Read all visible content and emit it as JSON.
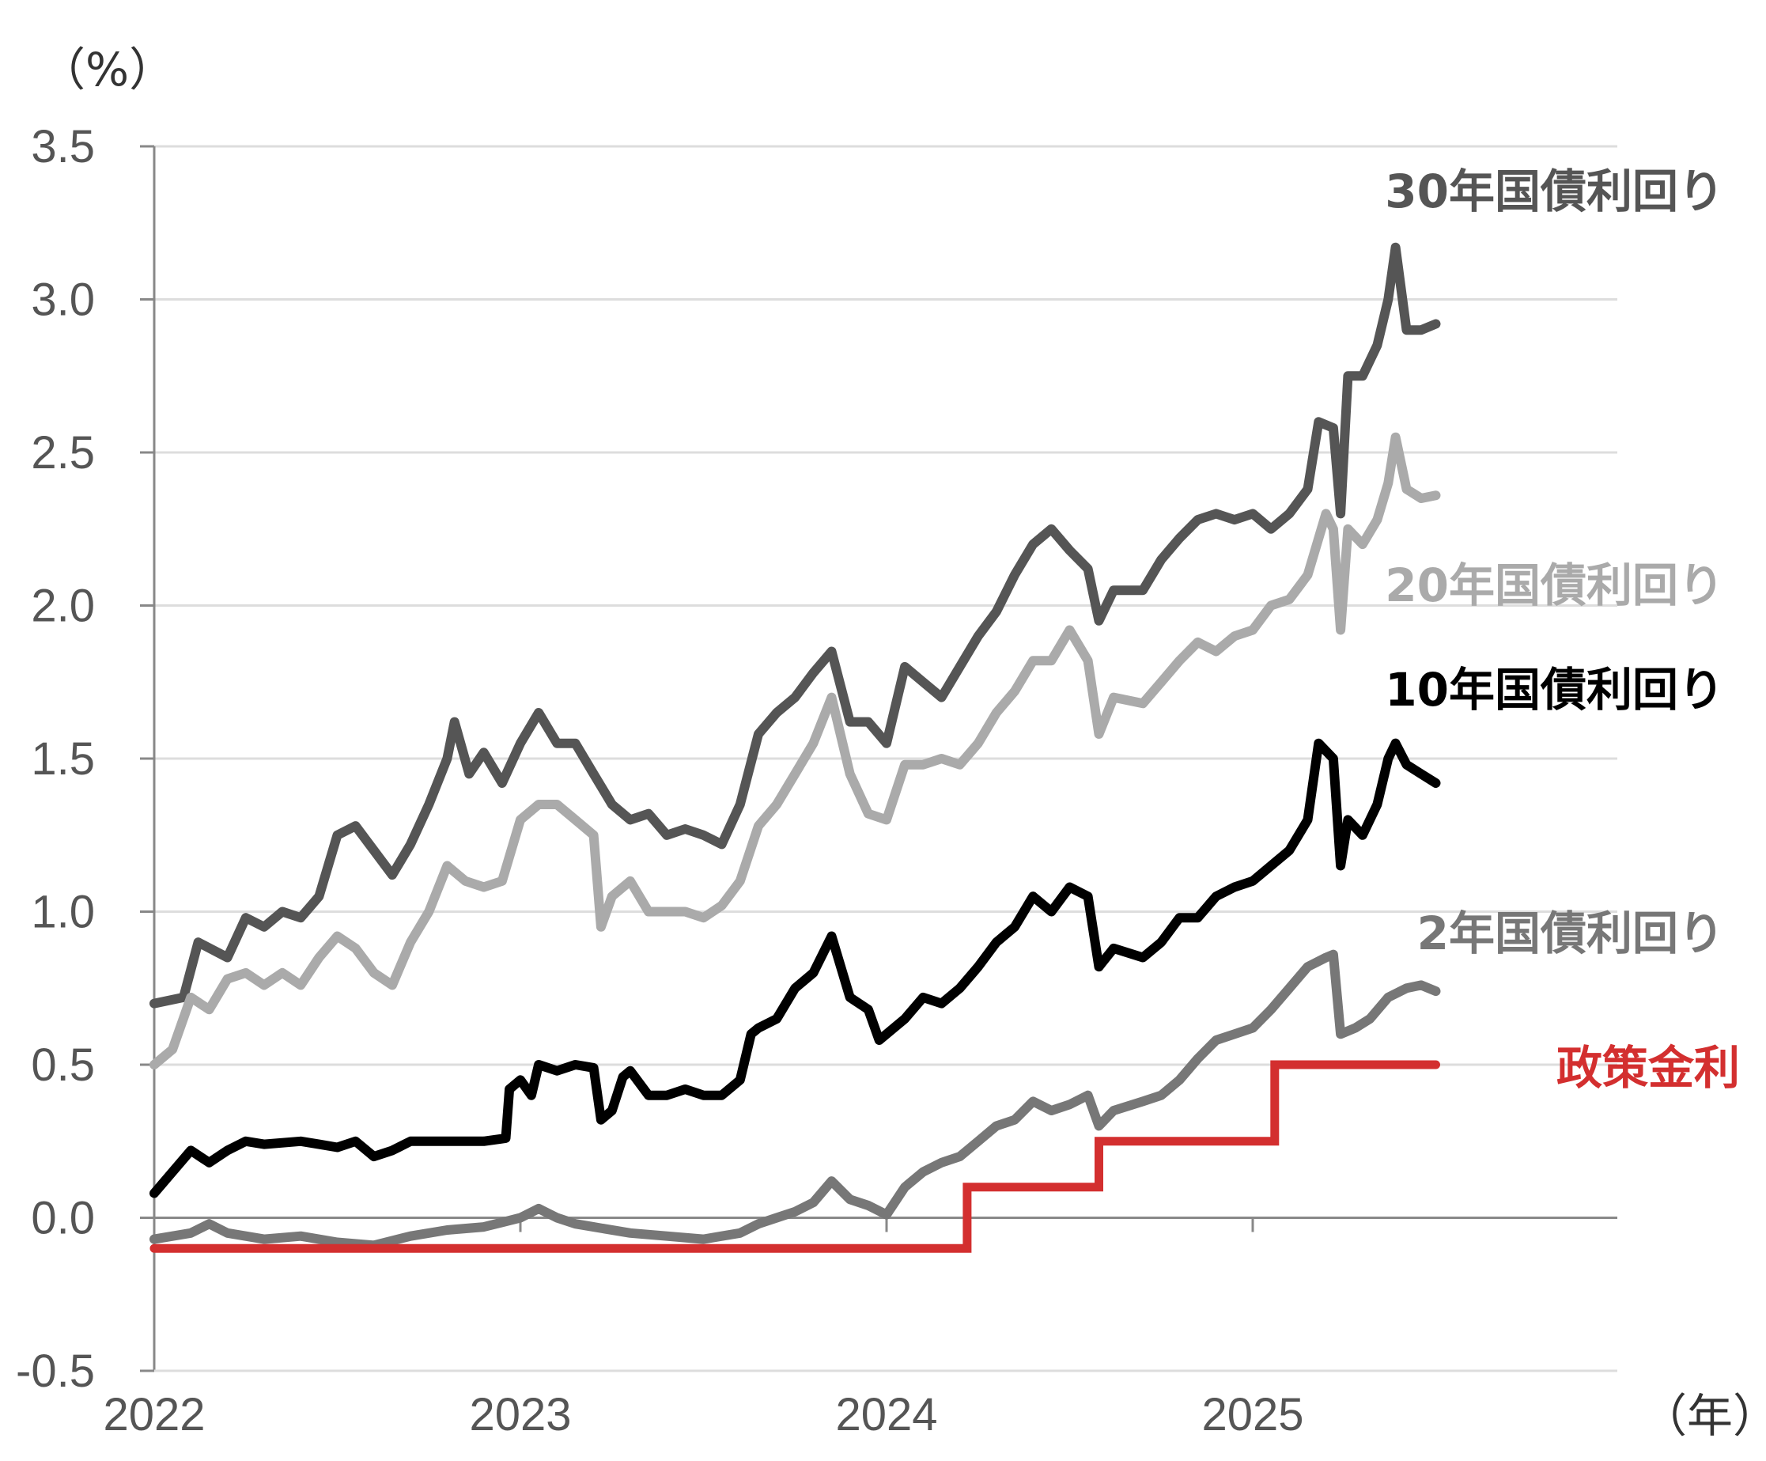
{
  "chart_data": {
    "type": "line",
    "y_unit_label": "（%）",
    "x_unit_label": "（年）",
    "ylim": [
      -0.5,
      3.5
    ],
    "y_ticks": [
      3.5,
      3.0,
      2.5,
      2.0,
      1.5,
      1.0,
      0.5,
      0.0,
      -0.5
    ],
    "y_tick_labels": [
      "3.5",
      "3.0",
      "2.5",
      "2.0",
      "1.5",
      "1.0",
      "0.5",
      "0.0",
      "-0.5"
    ],
    "x_ticks": [
      "2022",
      "2023",
      "2024",
      "2025"
    ],
    "xlim": [
      2022.0,
      2026.0
    ],
    "grid": true,
    "colors": {
      "grid": "#dddddd",
      "axis": "#888888",
      "tick_text": "#555555",
      "negative_tick_text": "#e00000"
    },
    "series": [
      {
        "name": "30年国債利回り",
        "color": "#555555",
        "points": [
          [
            2022.0,
            0.7
          ],
          [
            2022.08,
            0.72
          ],
          [
            2022.12,
            0.9
          ],
          [
            2022.2,
            0.85
          ],
          [
            2022.25,
            0.98
          ],
          [
            2022.3,
            0.95
          ],
          [
            2022.35,
            1.0
          ],
          [
            2022.4,
            0.98
          ],
          [
            2022.45,
            1.05
          ],
          [
            2022.5,
            1.25
          ],
          [
            2022.55,
            1.28
          ],
          [
            2022.6,
            1.2
          ],
          [
            2022.65,
            1.12
          ],
          [
            2022.7,
            1.22
          ],
          [
            2022.75,
            1.35
          ],
          [
            2022.8,
            1.5
          ],
          [
            2022.82,
            1.62
          ],
          [
            2022.86,
            1.45
          ],
          [
            2022.9,
            1.52
          ],
          [
            2022.95,
            1.42
          ],
          [
            2023.0,
            1.55
          ],
          [
            2023.05,
            1.65
          ],
          [
            2023.1,
            1.55
          ],
          [
            2023.15,
            1.55
          ],
          [
            2023.2,
            1.45
          ],
          [
            2023.25,
            1.35
          ],
          [
            2023.3,
            1.3
          ],
          [
            2023.35,
            1.32
          ],
          [
            2023.4,
            1.25
          ],
          [
            2023.45,
            1.27
          ],
          [
            2023.5,
            1.25
          ],
          [
            2023.55,
            1.22
          ],
          [
            2023.6,
            1.35
          ],
          [
            2023.65,
            1.58
          ],
          [
            2023.7,
            1.65
          ],
          [
            2023.75,
            1.7
          ],
          [
            2023.8,
            1.78
          ],
          [
            2023.85,
            1.85
          ],
          [
            2023.9,
            1.62
          ],
          [
            2023.95,
            1.62
          ],
          [
            2024.0,
            1.55
          ],
          [
            2024.05,
            1.8
          ],
          [
            2024.1,
            1.75
          ],
          [
            2024.15,
            1.7
          ],
          [
            2024.2,
            1.8
          ],
          [
            2024.25,
            1.9
          ],
          [
            2024.3,
            1.98
          ],
          [
            2024.35,
            2.1
          ],
          [
            2024.4,
            2.2
          ],
          [
            2024.45,
            2.25
          ],
          [
            2024.5,
            2.18
          ],
          [
            2024.55,
            2.12
          ],
          [
            2024.58,
            1.95
          ],
          [
            2024.62,
            2.05
          ],
          [
            2024.7,
            2.05
          ],
          [
            2024.75,
            2.15
          ],
          [
            2024.8,
            2.22
          ],
          [
            2024.85,
            2.28
          ],
          [
            2024.9,
            2.3
          ],
          [
            2024.95,
            2.28
          ],
          [
            2025.0,
            2.3
          ],
          [
            2025.05,
            2.25
          ],
          [
            2025.1,
            2.3
          ],
          [
            2025.15,
            2.38
          ],
          [
            2025.18,
            2.6
          ],
          [
            2025.22,
            2.58
          ],
          [
            2025.24,
            2.3
          ],
          [
            2025.26,
            2.75
          ],
          [
            2025.3,
            2.75
          ],
          [
            2025.34,
            2.85
          ],
          [
            2025.37,
            3.0
          ],
          [
            2025.39,
            3.17
          ],
          [
            2025.42,
            2.9
          ],
          [
            2025.46,
            2.9
          ],
          [
            2025.5,
            2.92
          ]
        ]
      },
      {
        "name": "20年国債利回り",
        "color": "#aaaaaa",
        "points": [
          [
            2022.0,
            0.5
          ],
          [
            2022.05,
            0.55
          ],
          [
            2022.1,
            0.72
          ],
          [
            2022.15,
            0.68
          ],
          [
            2022.2,
            0.78
          ],
          [
            2022.25,
            0.8
          ],
          [
            2022.3,
            0.76
          ],
          [
            2022.35,
            0.8
          ],
          [
            2022.4,
            0.76
          ],
          [
            2022.45,
            0.85
          ],
          [
            2022.5,
            0.92
          ],
          [
            2022.55,
            0.88
          ],
          [
            2022.6,
            0.8
          ],
          [
            2022.65,
            0.76
          ],
          [
            2022.7,
            0.9
          ],
          [
            2022.75,
            1.0
          ],
          [
            2022.8,
            1.15
          ],
          [
            2022.85,
            1.1
          ],
          [
            2022.9,
            1.08
          ],
          [
            2022.95,
            1.1
          ],
          [
            2023.0,
            1.3
          ],
          [
            2023.05,
            1.35
          ],
          [
            2023.1,
            1.35
          ],
          [
            2023.15,
            1.3
          ],
          [
            2023.2,
            1.25
          ],
          [
            2023.22,
            0.95
          ],
          [
            2023.25,
            1.05
          ],
          [
            2023.3,
            1.1
          ],
          [
            2023.35,
            1.0
          ],
          [
            2023.4,
            1.0
          ],
          [
            2023.45,
            1.0
          ],
          [
            2023.5,
            0.98
          ],
          [
            2023.55,
            1.02
          ],
          [
            2023.6,
            1.1
          ],
          [
            2023.65,
            1.28
          ],
          [
            2023.7,
            1.35
          ],
          [
            2023.75,
            1.45
          ],
          [
            2023.8,
            1.55
          ],
          [
            2023.85,
            1.7
          ],
          [
            2023.9,
            1.45
          ],
          [
            2023.95,
            1.32
          ],
          [
            2024.0,
            1.3
          ],
          [
            2024.05,
            1.48
          ],
          [
            2024.1,
            1.48
          ],
          [
            2024.15,
            1.5
          ],
          [
            2024.2,
            1.48
          ],
          [
            2024.25,
            1.55
          ],
          [
            2024.3,
            1.65
          ],
          [
            2024.35,
            1.72
          ],
          [
            2024.4,
            1.82
          ],
          [
            2024.45,
            1.82
          ],
          [
            2024.5,
            1.92
          ],
          [
            2024.55,
            1.82
          ],
          [
            2024.58,
            1.58
          ],
          [
            2024.62,
            1.7
          ],
          [
            2024.7,
            1.68
          ],
          [
            2024.75,
            1.75
          ],
          [
            2024.8,
            1.82
          ],
          [
            2024.85,
            1.88
          ],
          [
            2024.9,
            1.85
          ],
          [
            2024.95,
            1.9
          ],
          [
            2025.0,
            1.92
          ],
          [
            2025.05,
            2.0
          ],
          [
            2025.1,
            2.02
          ],
          [
            2025.15,
            2.1
          ],
          [
            2025.2,
            2.3
          ],
          [
            2025.22,
            2.25
          ],
          [
            2025.24,
            1.92
          ],
          [
            2025.26,
            2.25
          ],
          [
            2025.3,
            2.2
          ],
          [
            2025.34,
            2.28
          ],
          [
            2025.37,
            2.4
          ],
          [
            2025.39,
            2.55
          ],
          [
            2025.42,
            2.38
          ],
          [
            2025.46,
            2.35
          ],
          [
            2025.5,
            2.36
          ]
        ]
      },
      {
        "name": "10年国債利回り",
        "color": "#000000",
        "points": [
          [
            2022.0,
            0.08
          ],
          [
            2022.05,
            0.15
          ],
          [
            2022.1,
            0.22
          ],
          [
            2022.15,
            0.18
          ],
          [
            2022.2,
            0.22
          ],
          [
            2022.25,
            0.25
          ],
          [
            2022.3,
            0.24
          ],
          [
            2022.4,
            0.25
          ],
          [
            2022.45,
            0.24
          ],
          [
            2022.5,
            0.23
          ],
          [
            2022.55,
            0.25
          ],
          [
            2022.6,
            0.2
          ],
          [
            2022.65,
            0.22
          ],
          [
            2022.7,
            0.25
          ],
          [
            2022.8,
            0.25
          ],
          [
            2022.9,
            0.25
          ],
          [
            2022.96,
            0.26
          ],
          [
            2022.97,
            0.42
          ],
          [
            2023.0,
            0.45
          ],
          [
            2023.03,
            0.4
          ],
          [
            2023.05,
            0.5
          ],
          [
            2023.1,
            0.48
          ],
          [
            2023.15,
            0.5
          ],
          [
            2023.2,
            0.49
          ],
          [
            2023.22,
            0.32
          ],
          [
            2023.25,
            0.35
          ],
          [
            2023.28,
            0.46
          ],
          [
            2023.3,
            0.48
          ],
          [
            2023.35,
            0.4
          ],
          [
            2023.4,
            0.4
          ],
          [
            2023.45,
            0.42
          ],
          [
            2023.5,
            0.4
          ],
          [
            2023.55,
            0.4
          ],
          [
            2023.6,
            0.45
          ],
          [
            2023.63,
            0.6
          ],
          [
            2023.65,
            0.62
          ],
          [
            2023.7,
            0.65
          ],
          [
            2023.75,
            0.75
          ],
          [
            2023.8,
            0.8
          ],
          [
            2023.85,
            0.92
          ],
          [
            2023.9,
            0.72
          ],
          [
            2023.95,
            0.68
          ],
          [
            2023.98,
            0.58
          ],
          [
            2024.0,
            0.6
          ],
          [
            2024.05,
            0.65
          ],
          [
            2024.1,
            0.72
          ],
          [
            2024.15,
            0.7
          ],
          [
            2024.2,
            0.75
          ],
          [
            2024.25,
            0.82
          ],
          [
            2024.3,
            0.9
          ],
          [
            2024.35,
            0.95
          ],
          [
            2024.4,
            1.05
          ],
          [
            2024.45,
            1.0
          ],
          [
            2024.5,
            1.08
          ],
          [
            2024.55,
            1.05
          ],
          [
            2024.58,
            0.82
          ],
          [
            2024.62,
            0.88
          ],
          [
            2024.7,
            0.85
          ],
          [
            2024.75,
            0.9
          ],
          [
            2024.8,
            0.98
          ],
          [
            2024.85,
            0.98
          ],
          [
            2024.9,
            1.05
          ],
          [
            2024.95,
            1.08
          ],
          [
            2025.0,
            1.1
          ],
          [
            2025.05,
            1.15
          ],
          [
            2025.1,
            1.2
          ],
          [
            2025.15,
            1.3
          ],
          [
            2025.18,
            1.55
          ],
          [
            2025.22,
            1.5
          ],
          [
            2025.24,
            1.15
          ],
          [
            2025.26,
            1.3
          ],
          [
            2025.3,
            1.25
          ],
          [
            2025.34,
            1.35
          ],
          [
            2025.37,
            1.5
          ],
          [
            2025.39,
            1.55
          ],
          [
            2025.42,
            1.48
          ],
          [
            2025.46,
            1.45
          ],
          [
            2025.5,
            1.42
          ]
        ]
      },
      {
        "name": "2年国債利回り",
        "color": "#777777",
        "points": [
          [
            2022.0,
            -0.07
          ],
          [
            2022.1,
            -0.05
          ],
          [
            2022.15,
            -0.02
          ],
          [
            2022.2,
            -0.05
          ],
          [
            2022.3,
            -0.07
          ],
          [
            2022.4,
            -0.06
          ],
          [
            2022.5,
            -0.08
          ],
          [
            2022.6,
            -0.09
          ],
          [
            2022.7,
            -0.06
          ],
          [
            2022.8,
            -0.04
          ],
          [
            2022.9,
            -0.03
          ],
          [
            2023.0,
            0.0
          ],
          [
            2023.05,
            0.03
          ],
          [
            2023.1,
            0.0
          ],
          [
            2023.15,
            -0.02
          ],
          [
            2023.2,
            -0.03
          ],
          [
            2023.3,
            -0.05
          ],
          [
            2023.4,
            -0.06
          ],
          [
            2023.5,
            -0.07
          ],
          [
            2023.55,
            -0.06
          ],
          [
            2023.6,
            -0.05
          ],
          [
            2023.65,
            -0.02
          ],
          [
            2023.7,
            0.0
          ],
          [
            2023.75,
            0.02
          ],
          [
            2023.8,
            0.05
          ],
          [
            2023.85,
            0.12
          ],
          [
            2023.9,
            0.06
          ],
          [
            2023.95,
            0.04
          ],
          [
            2024.0,
            0.01
          ],
          [
            2024.05,
            0.1
          ],
          [
            2024.1,
            0.15
          ],
          [
            2024.15,
            0.18
          ],
          [
            2024.2,
            0.2
          ],
          [
            2024.25,
            0.25
          ],
          [
            2024.3,
            0.3
          ],
          [
            2024.35,
            0.32
          ],
          [
            2024.4,
            0.38
          ],
          [
            2024.45,
            0.35
          ],
          [
            2024.5,
            0.37
          ],
          [
            2024.55,
            0.4
          ],
          [
            2024.58,
            0.3
          ],
          [
            2024.62,
            0.35
          ],
          [
            2024.7,
            0.38
          ],
          [
            2024.75,
            0.4
          ],
          [
            2024.8,
            0.45
          ],
          [
            2024.85,
            0.52
          ],
          [
            2024.9,
            0.58
          ],
          [
            2024.95,
            0.6
          ],
          [
            2025.0,
            0.62
          ],
          [
            2025.05,
            0.68
          ],
          [
            2025.1,
            0.75
          ],
          [
            2025.15,
            0.82
          ],
          [
            2025.2,
            0.85
          ],
          [
            2025.22,
            0.86
          ],
          [
            2025.24,
            0.6
          ],
          [
            2025.28,
            0.62
          ],
          [
            2025.32,
            0.65
          ],
          [
            2025.37,
            0.72
          ],
          [
            2025.42,
            0.75
          ],
          [
            2025.46,
            0.76
          ],
          [
            2025.5,
            0.74
          ]
        ]
      },
      {
        "name": "政策金利",
        "color": "#d32f2f",
        "step": true,
        "points": [
          [
            2022.0,
            -0.1
          ],
          [
            2024.22,
            -0.1
          ],
          [
            2024.22,
            0.1
          ],
          [
            2024.58,
            0.1
          ],
          [
            2024.58,
            0.25
          ],
          [
            2025.06,
            0.25
          ],
          [
            2025.06,
            0.5
          ],
          [
            2025.5,
            0.5
          ]
        ]
      }
    ]
  }
}
